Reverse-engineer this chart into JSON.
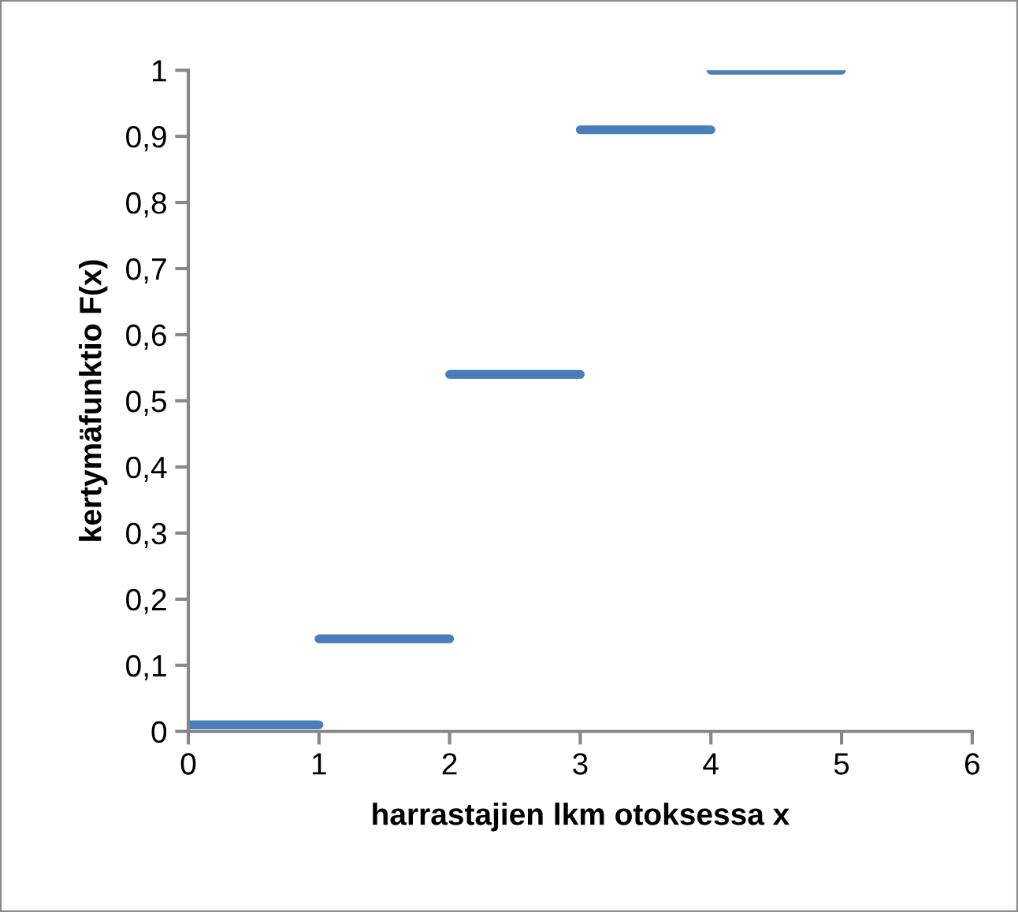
{
  "chart_data": {
    "type": "line",
    "xlabel": "harrastajien lkm otoksessa x",
    "ylabel": "kertymäfunktio F(x)",
    "series": [
      {
        "color": "#4a7ebb",
        "x": [
          0,
          1
        ],
        "values": [
          0.01,
          0.01
        ]
      },
      {
        "color": "#4a7ebb",
        "x": [
          1,
          2
        ],
        "values": [
          0.14,
          0.14
        ]
      },
      {
        "color": "#4a7ebb",
        "x": [
          2,
          3
        ],
        "values": [
          0.54,
          0.54
        ]
      },
      {
        "color": "#4a7ebb",
        "x": [
          3,
          4
        ],
        "values": [
          0.91,
          0.91
        ]
      },
      {
        "color": "#4a7ebb",
        "x": [
          4,
          5
        ],
        "values": [
          1,
          1
        ]
      }
    ],
    "xlim": [
      0,
      6
    ],
    "xticks": [
      0,
      1,
      2,
      3,
      4,
      5,
      6
    ],
    "ylim": [
      0,
      1
    ],
    "yticks": [
      0,
      {
        "value": 0.1,
        "label": "0,1"
      },
      {
        "value": 0.2,
        "label": "0,2"
      },
      {
        "value": 0.3,
        "label": "0,3"
      },
      {
        "value": 0.4,
        "label": "0,4"
      },
      {
        "value": 0.5,
        "label": "0,5"
      },
      {
        "value": 0.6,
        "label": "0,6"
      },
      {
        "value": 0.7,
        "label": "0,7"
      },
      {
        "value": 0.8,
        "label": "0,8"
      },
      {
        "value": 0.9,
        "label": "0,9"
      },
      1
    ],
    "grid": false,
    "legend": false,
    "marker": "none",
    "line_style": "solid"
  }
}
